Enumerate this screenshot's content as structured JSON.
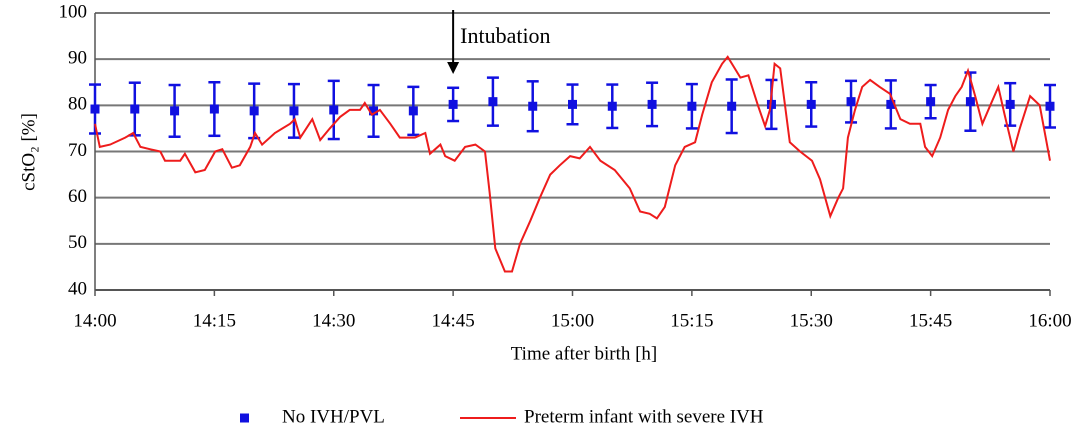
{
  "chart_data": {
    "type": "line",
    "ylabel": "cStO₂ [%]",
    "xlabel": "Time after birth [h]",
    "annotation": "Intubation",
    "annotation_x": 885,
    "xlim": [
      840,
      960
    ],
    "xticks": [
      {
        "value": 840,
        "label": "14:00"
      },
      {
        "value": 855,
        "label": "14:15"
      },
      {
        "value": 870,
        "label": "14:30"
      },
      {
        "value": 885,
        "label": "14:45"
      },
      {
        "value": 900,
        "label": "15:00"
      },
      {
        "value": 915,
        "label": "15:15"
      },
      {
        "value": 930,
        "label": "15:30"
      },
      {
        "value": 945,
        "label": "15:45"
      },
      {
        "value": 960,
        "label": "16:00"
      }
    ],
    "ylim": [
      40,
      100
    ],
    "yticks": [
      40,
      50,
      60,
      70,
      80,
      90,
      100
    ],
    "grid": true,
    "legend": "bottom",
    "series": [
      {
        "name": "No IVH/PVL",
        "color": "#1010e0",
        "style": "marker",
        "x": [
          840,
          845,
          850,
          855,
          860,
          865,
          870,
          875,
          880,
          885,
          890,
          895,
          900,
          905,
          910,
          915,
          920,
          925,
          930,
          935,
          940,
          945,
          950,
          955,
          960
        ],
        "values": [
          79.2,
          79.2,
          78.8,
          79.2,
          78.8,
          78.8,
          79,
          78.8,
          78.8,
          80.2,
          80.8,
          79.8,
          80.2,
          79.8,
          80.2,
          79.8,
          79.8,
          80.2,
          80.2,
          80.8,
          80.2,
          80.8,
          80.8,
          80.2,
          79.8
        ],
        "errors": [
          5.3,
          5.7,
          5.6,
          5.8,
          5.9,
          5.8,
          6.3,
          5.6,
          5.2,
          3.6,
          5.2,
          5.4,
          4.3,
          4.7,
          4.7,
          4.8,
          5.8,
          5.3,
          4.8,
          4.5,
          5.2,
          3.6,
          6.3,
          4.6,
          4.6
        ]
      },
      {
        "name": "Preterm infant with severe IVH",
        "color": "#ee1c1c",
        "style": "line",
        "x": [
          840,
          840.6,
          841.9,
          843.8,
          844.8,
          845.7,
          846.9,
          848.2,
          848.8,
          850.7,
          851.3,
          852.6,
          853.8,
          855.1,
          856,
          857.2,
          858.2,
          859.5,
          860.1,
          861,
          862.6,
          864.5,
          865.1,
          865.8,
          867.3,
          868.3,
          869.5,
          870.8,
          872,
          873.3,
          873.9,
          874.8,
          875.8,
          877.1,
          878.3,
          880.2,
          881.5,
          882.1,
          883.4,
          884,
          885.2,
          886.5,
          887.8,
          889,
          889.6,
          890.3,
          891.5,
          892.4,
          893.4,
          894.7,
          895.9,
          897.2,
          898.4,
          899.7,
          900.9,
          902.2,
          903.5,
          905.3,
          907.2,
          908.5,
          909.7,
          910.6,
          911.6,
          912.9,
          914.1,
          915.4,
          916.3,
          917.5,
          918.8,
          919.5,
          921.1,
          922.1,
          923.3,
          924.2,
          924.8,
          925.4,
          926.1,
          926.7,
          927.3,
          928.6,
          930.1,
          931.1,
          932.4,
          933.4,
          934,
          934.6,
          935.5,
          936.4,
          937.4,
          938.6,
          939.9,
          941.2,
          942.4,
          943.7,
          944.3,
          945.2,
          946.2,
          947.2,
          948.1,
          948.9,
          949.7,
          950.6,
          951.5,
          952.5,
          953.5,
          954.3,
          955.4,
          956.2,
          957.5,
          958.7,
          960
        ],
        "values": [
          76,
          71,
          71.5,
          73,
          74,
          71,
          70.5,
          70,
          68,
          68,
          69.5,
          65.5,
          66,
          70,
          70.5,
          66.5,
          67,
          71,
          74,
          71.5,
          74,
          76,
          77,
          73,
          77,
          72.5,
          75,
          77.5,
          79,
          79,
          80.5,
          78,
          79,
          76,
          73,
          73,
          74,
          69.5,
          71.5,
          69,
          68,
          71,
          71.5,
          70,
          61,
          49,
          44,
          44,
          50,
          55,
          60,
          65,
          67,
          69,
          68.5,
          71,
          68,
          66,
          62,
          57,
          56.5,
          55.5,
          58,
          67,
          71,
          72,
          78,
          85,
          89,
          90.5,
          86,
          86.5,
          80,
          75.5,
          79,
          89,
          88,
          80,
          72,
          70,
          68,
          64,
          56,
          60,
          62,
          73,
          79,
          84,
          85.5,
          84,
          82.5,
          77,
          76,
          76,
          71,
          69,
          73,
          79,
          82,
          84,
          87.5,
          82,
          76,
          80,
          84,
          78,
          70,
          75,
          82,
          80,
          68
        ]
      }
    ]
  }
}
